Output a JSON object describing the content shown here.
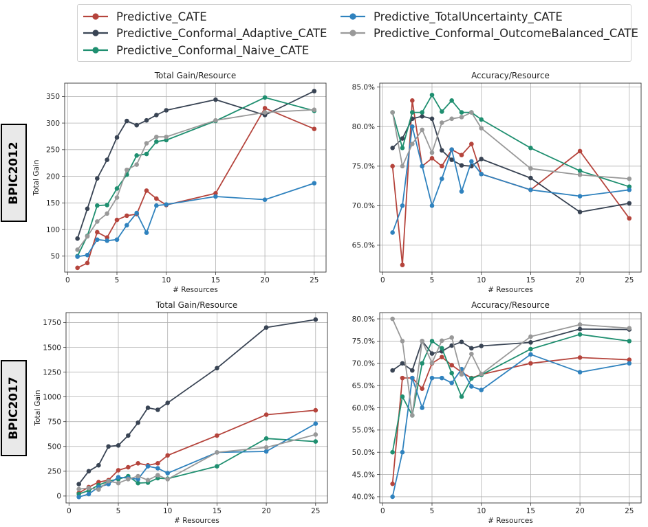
{
  "legend": {
    "items": [
      {
        "name": "Predictive_CATE",
        "color": "#b5443c"
      },
      {
        "name": "Predictive_Conformal_Adaptive_CATE",
        "color": "#394454"
      },
      {
        "name": "Predictive_Conformal_Naive_CATE",
        "color": "#1f8f70"
      },
      {
        "name": "Predictive_TotalUncertainty_CATE",
        "color": "#2f82be"
      },
      {
        "name": "Predictive_Conformal_OutcomeBalanced_CATE",
        "color": "#999999"
      }
    ]
  },
  "row_labels": [
    "BPIC2012",
    "BPIC2017"
  ],
  "chart_data": [
    {
      "id": "bpic2012-gain",
      "type": "line",
      "title": "Total Gain/Resource",
      "xlabel": "# Resources",
      "ylabel": "Total Gain",
      "xlim": [
        -0.3,
        26.2
      ],
      "ylim": [
        20,
        375
      ],
      "xticks": [
        0,
        5,
        10,
        15,
        20,
        25
      ],
      "yticks": [
        50,
        100,
        150,
        200,
        250,
        300,
        350
      ],
      "ytick_format": "int",
      "x": [
        1,
        2,
        3,
        4,
        5,
        6,
        7,
        8,
        9,
        10,
        15,
        20,
        25
      ],
      "series": [
        {
          "name": "Predictive_CATE",
          "color": "#b5443c",
          "values": [
            28,
            37,
            95,
            85,
            118,
            126,
            129,
            173,
            158,
            146,
            168,
            328,
            289
          ]
        },
        {
          "name": "Predictive_Conformal_Adaptive_CATE",
          "color": "#394454",
          "values": [
            83,
            139,
            196,
            231,
            273,
            304,
            296,
            305,
            315,
            324,
            344,
            315,
            360
          ]
        },
        {
          "name": "Predictive_Conformal_Naive_CATE",
          "color": "#1f8f70",
          "values": [
            50,
            88,
            145,
            146,
            177,
            203,
            239,
            242,
            265,
            268,
            304,
            348,
            323
          ]
        },
        {
          "name": "Predictive_TotalUncertainty_CATE",
          "color": "#2f82be",
          "values": [
            49,
            52,
            81,
            79,
            81,
            108,
            131,
            94,
            145,
            147,
            162,
            156,
            187
          ]
        },
        {
          "name": "Predictive_Conformal_OutcomeBalanced_CATE",
          "color": "#999999",
          "values": [
            62,
            87,
            115,
            130,
            160,
            212,
            222,
            262,
            274,
            274,
            305,
            320,
            325
          ]
        }
      ]
    },
    {
      "id": "bpic2012-acc",
      "type": "line",
      "title": "Accuracy/Resource",
      "xlabel": "# Resources",
      "ylabel": "",
      "xlim": [
        -0.3,
        26.2
      ],
      "ylim": [
        61.6,
        85.5
      ],
      "xticks": [
        0,
        5,
        10,
        15,
        20,
        25
      ],
      "yticks": [
        65,
        70,
        75,
        80,
        85
      ],
      "ytick_format": "pct",
      "x": [
        1,
        2,
        3,
        4,
        5,
        6,
        7,
        8,
        9,
        10,
        15,
        20,
        25
      ],
      "series": [
        {
          "name": "Predictive_CATE",
          "color": "#b5443c",
          "values": [
            75.0,
            62.5,
            83.3,
            75.0,
            76.0,
            75.0,
            77.1,
            76.4,
            77.8,
            74.0,
            72.0,
            76.9,
            68.4
          ]
        },
        {
          "name": "Predictive_Conformal_Adaptive_CATE",
          "color": "#394454",
          "values": [
            77.3,
            78.5,
            81.0,
            81.3,
            81.0,
            77.0,
            75.8,
            75.1,
            75.0,
            75.9,
            73.5,
            69.2,
            70.3
          ]
        },
        {
          "name": "Predictive_Conformal_Naive_CATE",
          "color": "#1f8f70",
          "values": [
            81.8,
            77.3,
            81.8,
            81.8,
            84.0,
            81.9,
            83.3,
            81.8,
            81.8,
            80.9,
            77.3,
            74.4,
            72.4
          ]
        },
        {
          "name": "Predictive_TotalUncertainty_CATE",
          "color": "#2f82be",
          "values": [
            66.6,
            70.0,
            80.0,
            75.0,
            70.0,
            73.4,
            77.1,
            71.8,
            75.6,
            74.0,
            72.0,
            71.2,
            72.0
          ]
        },
        {
          "name": "Predictive_Conformal_OutcomeBalanced_CATE",
          "color": "#999999",
          "values": [
            81.8,
            75.0,
            77.8,
            79.6,
            76.7,
            80.5,
            81.0,
            81.2,
            81.8,
            79.8,
            74.7,
            73.9,
            73.4
          ]
        }
      ]
    },
    {
      "id": "bpic2017-gain",
      "type": "line",
      "title": "Total Gain/Resource",
      "xlabel": "# Resources",
      "ylabel": "Total Gain",
      "xlim": [
        -0.3,
        26.2
      ],
      "ylim": [
        -70,
        1850
      ],
      "xticks": [
        0,
        5,
        10,
        15,
        20,
        25
      ],
      "yticks": [
        0,
        250,
        500,
        750,
        1000,
        1250,
        1500,
        1750
      ],
      "ytick_format": "int",
      "x": [
        1,
        2,
        3,
        4,
        5,
        6,
        7,
        8,
        9,
        10,
        15,
        20,
        25
      ],
      "series": [
        {
          "name": "Predictive_CATE",
          "color": "#b5443c",
          "values": [
            30,
            90,
            140,
            160,
            260,
            290,
            330,
            310,
            330,
            410,
            610,
            820,
            865
          ]
        },
        {
          "name": "Predictive_Conformal_Adaptive_CATE",
          "color": "#394454",
          "values": [
            120,
            250,
            310,
            500,
            510,
            610,
            740,
            890,
            870,
            940,
            1290,
            1700,
            1780
          ]
        },
        {
          "name": "Predictive_Conformal_Naive_CATE",
          "color": "#1f8f70",
          "values": [
            20,
            55,
            110,
            150,
            170,
            200,
            130,
            135,
            180,
            175,
            300,
            580,
            550
          ]
        },
        {
          "name": "Predictive_TotalUncertainty_CATE",
          "color": "#2f82be",
          "values": [
            -10,
            20,
            90,
            120,
            190,
            180,
            170,
            300,
            280,
            230,
            440,
            450,
            730
          ]
        },
        {
          "name": "Predictive_Conformal_OutcomeBalanced_CATE",
          "color": "#999999",
          "values": [
            70,
            80,
            65,
            150,
            130,
            170,
            200,
            160,
            210,
            170,
            440,
            490,
            620
          ]
        }
      ]
    },
    {
      "id": "bpic2017-acc",
      "type": "line",
      "title": "Accuracy/Resource",
      "xlabel": "# Resources",
      "ylabel": "",
      "xlim": [
        -0.3,
        26.2
      ],
      "ylim": [
        38.6,
        81.4
      ],
      "xticks": [
        0,
        5,
        10,
        15,
        20,
        25
      ],
      "yticks": [
        40,
        45,
        50,
        55,
        60,
        65,
        70,
        75,
        80
      ],
      "ytick_format": "pct",
      "x": [
        1,
        2,
        3,
        4,
        5,
        6,
        7,
        8,
        9,
        10,
        15,
        20,
        25
      ],
      "series": [
        {
          "name": "Predictive_CATE",
          "color": "#b5443c",
          "values": [
            42.9,
            66.7,
            66.7,
            64.3,
            70.0,
            71.4,
            69.6,
            68.0,
            66.7,
            67.5,
            70.0,
            71.3,
            70.8
          ]
        },
        {
          "name": "Predictive_Conformal_Adaptive_CATE",
          "color": "#394454",
          "values": [
            68.4,
            70.0,
            68.4,
            75.0,
            72.2,
            72.7,
            74.0,
            74.8,
            73.4,
            73.9,
            74.7,
            77.7,
            77.6
          ]
        },
        {
          "name": "Predictive_Conformal_Naive_CATE",
          "color": "#1f8f70",
          "values": [
            50.0,
            62.5,
            58.3,
            70.0,
            75.0,
            73.4,
            67.8,
            62.5,
            66.6,
            67.4,
            73.2,
            76.5,
            75.0
          ]
        },
        {
          "name": "Predictive_TotalUncertainty_CATE",
          "color": "#2f82be",
          "values": [
            40.0,
            50.0,
            66.7,
            60.0,
            66.7,
            66.7,
            65.6,
            68.7,
            64.8,
            64.0,
            72.0,
            68.0,
            70.0
          ]
        },
        {
          "name": "Predictive_Conformal_OutcomeBalanced_CATE",
          "color": "#999999",
          "values": [
            80.0,
            75.0,
            58.3,
            75.0,
            70.1,
            75.1,
            75.8,
            67.5,
            72.1,
            67.6,
            76.0,
            78.7,
            77.9
          ]
        }
      ]
    }
  ]
}
